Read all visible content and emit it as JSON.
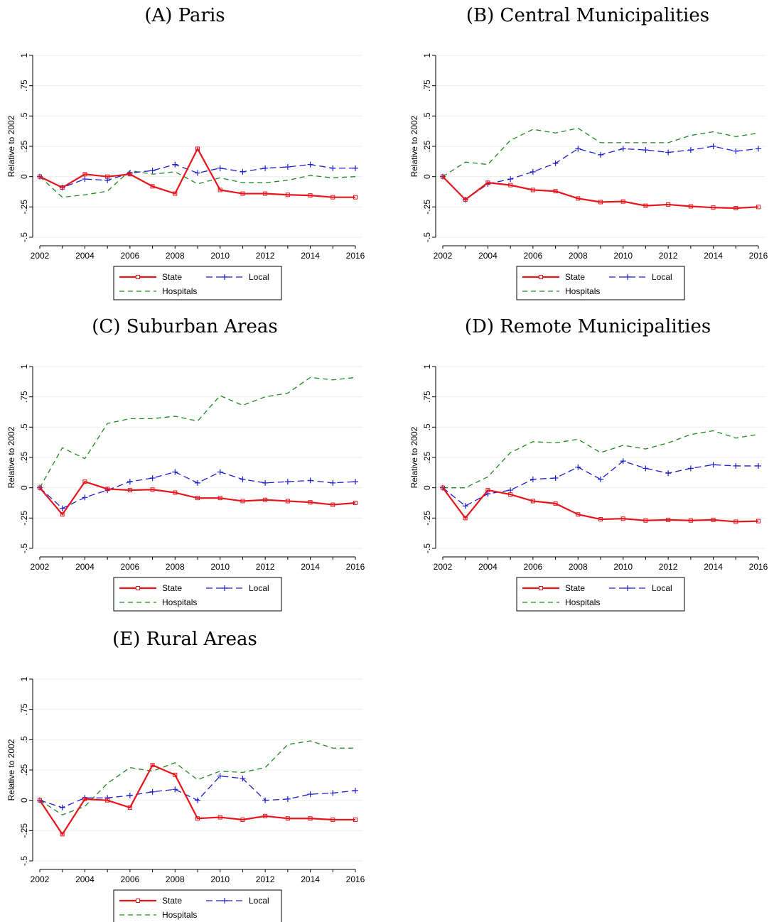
{
  "chart_data": [
    {
      "type": "line",
      "title": "(A) Paris",
      "ylabel": "Relative to 2002",
      "xlabel": "",
      "x": [
        2002,
        2003,
        2004,
        2005,
        2006,
        2007,
        2008,
        2009,
        2010,
        2011,
        2012,
        2013,
        2014,
        2015,
        2016
      ],
      "xticks": [
        "2002",
        "2004",
        "2006",
        "2008",
        "2010",
        "2012",
        "2014",
        "2016"
      ],
      "yticks": [
        "-.5",
        "-.25",
        "0",
        ".25",
        ".5",
        ".75",
        "1"
      ],
      "xlim": [
        2002,
        2016
      ],
      "ylim": [
        -0.5,
        1
      ],
      "grid": true,
      "legend_position": "bottom",
      "series": [
        {
          "name": "State",
          "color": "#e8141b",
          "style": "solid-square",
          "values": [
            0,
            -0.09,
            0.02,
            0.0,
            0.02,
            -0.08,
            -0.14,
            0.23,
            -0.11,
            -0.14,
            -0.14,
            -0.15,
            -0.155,
            -0.17,
            -0.17
          ]
        },
        {
          "name": "Local",
          "color": "#1e1ecf",
          "style": "dash-plus",
          "values": [
            0,
            -0.09,
            -0.02,
            -0.03,
            0.03,
            0.05,
            0.1,
            0.03,
            0.07,
            0.04,
            0.07,
            0.08,
            0.1,
            0.07,
            0.07
          ]
        },
        {
          "name": "Hospitals",
          "color": "#218a21",
          "style": "dash",
          "values": [
            0,
            -0.17,
            -0.15,
            -0.12,
            0.05,
            0.02,
            0.04,
            -0.06,
            -0.01,
            -0.05,
            -0.05,
            -0.03,
            0.01,
            -0.01,
            0.0
          ]
        }
      ]
    },
    {
      "type": "line",
      "title": "(B) Central Municipalities",
      "ylabel": "Relative to 2002",
      "xlabel": "",
      "x": [
        2002,
        2003,
        2004,
        2005,
        2006,
        2007,
        2008,
        2009,
        2010,
        2011,
        2012,
        2013,
        2014,
        2015,
        2016
      ],
      "xticks": [
        "2002",
        "2004",
        "2006",
        "2008",
        "2010",
        "2012",
        "2014",
        "2016"
      ],
      "yticks": [
        "-.5",
        "-.25",
        "0",
        ".25",
        ".5",
        ".75",
        "1"
      ],
      "xlim": [
        2002,
        2016
      ],
      "ylim": [
        -0.5,
        1
      ],
      "grid": true,
      "legend_position": "bottom",
      "series": [
        {
          "name": "State",
          "color": "#e8141b",
          "style": "solid-square",
          "values": [
            0,
            -0.19,
            -0.05,
            -0.07,
            -0.11,
            -0.12,
            -0.18,
            -0.21,
            -0.205,
            -0.24,
            -0.23,
            -0.245,
            -0.255,
            -0.26,
            -0.25
          ]
        },
        {
          "name": "Local",
          "color": "#1e1ecf",
          "style": "dash-plus",
          "values": [
            0,
            -0.19,
            -0.06,
            -0.02,
            0.04,
            0.11,
            0.23,
            0.18,
            0.23,
            0.22,
            0.2,
            0.22,
            0.25,
            0.21,
            0.23
          ]
        },
        {
          "name": "Hospitals",
          "color": "#218a21",
          "style": "dash",
          "values": [
            0,
            0.12,
            0.1,
            0.3,
            0.39,
            0.36,
            0.4,
            0.28,
            0.28,
            0.28,
            0.28,
            0.34,
            0.37,
            0.33,
            0.36
          ]
        }
      ]
    },
    {
      "type": "line",
      "title": "(C) Suburban Areas",
      "ylabel": "Relative to 2002",
      "xlabel": "",
      "x": [
        2002,
        2003,
        2004,
        2005,
        2006,
        2007,
        2008,
        2009,
        2010,
        2011,
        2012,
        2013,
        2014,
        2015,
        2016
      ],
      "xticks": [
        "2002",
        "2004",
        "2006",
        "2008",
        "2010",
        "2012",
        "2014",
        "2016"
      ],
      "yticks": [
        "-.5",
        "-.25",
        "0",
        ".25",
        ".5",
        ".75",
        "1"
      ],
      "xlim": [
        2002,
        2016
      ],
      "ylim": [
        -0.5,
        1
      ],
      "grid": true,
      "legend_position": "bottom",
      "series": [
        {
          "name": "State",
          "color": "#e8141b",
          "style": "solid-square",
          "values": [
            0,
            -0.22,
            0.05,
            -0.01,
            -0.02,
            -0.015,
            -0.04,
            -0.085,
            -0.085,
            -0.11,
            -0.1,
            -0.11,
            -0.12,
            -0.14,
            -0.125
          ]
        },
        {
          "name": "Local",
          "color": "#1e1ecf",
          "style": "dash-plus",
          "values": [
            0,
            -0.17,
            -0.08,
            -0.02,
            0.05,
            0.08,
            0.13,
            0.04,
            0.13,
            0.07,
            0.04,
            0.05,
            0.06,
            0.04,
            0.05
          ]
        },
        {
          "name": "Hospitals",
          "color": "#218a21",
          "style": "dash",
          "values": [
            0,
            0.33,
            0.24,
            0.53,
            0.57,
            0.57,
            0.59,
            0.55,
            0.76,
            0.68,
            0.75,
            0.78,
            0.91,
            0.89,
            0.91
          ]
        }
      ]
    },
    {
      "type": "line",
      "title": "(D) Remote Municipalities",
      "ylabel": "Relative to 2002",
      "xlabel": "",
      "x": [
        2002,
        2003,
        2004,
        2005,
        2006,
        2007,
        2008,
        2009,
        2010,
        2011,
        2012,
        2013,
        2014,
        2015,
        2016
      ],
      "xticks": [
        "2002",
        "2004",
        "2006",
        "2008",
        "2010",
        "2012",
        "2014",
        "2016"
      ],
      "yticks": [
        "-.5",
        "-.25",
        "0",
        ".25",
        ".5",
        ".75",
        "1"
      ],
      "xlim": [
        2002,
        2016
      ],
      "ylim": [
        -0.5,
        1
      ],
      "grid": true,
      "legend_position": "bottom",
      "series": [
        {
          "name": "State",
          "color": "#e8141b",
          "style": "solid-square",
          "values": [
            0,
            -0.25,
            -0.02,
            -0.055,
            -0.11,
            -0.13,
            -0.22,
            -0.26,
            -0.255,
            -0.27,
            -0.265,
            -0.27,
            -0.265,
            -0.28,
            -0.275
          ]
        },
        {
          "name": "Local",
          "color": "#1e1ecf",
          "style": "dash-plus",
          "values": [
            0,
            -0.15,
            -0.05,
            -0.02,
            0.07,
            0.08,
            0.17,
            0.07,
            0.22,
            0.16,
            0.12,
            0.16,
            0.19,
            0.18,
            0.18
          ]
        },
        {
          "name": "Hospitals",
          "color": "#218a21",
          "style": "dash",
          "values": [
            0,
            0.0,
            0.09,
            0.29,
            0.38,
            0.37,
            0.4,
            0.29,
            0.35,
            0.32,
            0.37,
            0.44,
            0.47,
            0.41,
            0.44
          ]
        }
      ]
    },
    {
      "type": "line",
      "title": "(E) Rural Areas",
      "ylabel": "Relative to 2002",
      "xlabel": "",
      "x": [
        2002,
        2003,
        2004,
        2005,
        2006,
        2007,
        2008,
        2009,
        2010,
        2011,
        2012,
        2013,
        2014,
        2015,
        2016
      ],
      "xticks": [
        "2002",
        "2004",
        "2006",
        "2008",
        "2010",
        "2012",
        "2014",
        "2016"
      ],
      "yticks": [
        "-.5",
        "-.25",
        "0",
        ".25",
        ".5",
        ".75",
        "1"
      ],
      "xlim": [
        2002,
        2016
      ],
      "ylim": [
        -0.5,
        1
      ],
      "grid": true,
      "legend_position": "bottom",
      "series": [
        {
          "name": "State",
          "color": "#e8141b",
          "style": "solid-square",
          "values": [
            0,
            -0.28,
            0.01,
            0.0,
            -0.06,
            0.29,
            0.21,
            -0.15,
            -0.14,
            -0.16,
            -0.13,
            -0.15,
            -0.15,
            -0.16,
            -0.16
          ]
        },
        {
          "name": "Local",
          "color": "#1e1ecf",
          "style": "dash-plus",
          "values": [
            0,
            -0.06,
            0.02,
            0.02,
            0.04,
            0.07,
            0.09,
            0.0,
            0.2,
            0.18,
            0.0,
            0.01,
            0.05,
            0.06,
            0.08
          ]
        },
        {
          "name": "Hospitals",
          "color": "#218a21",
          "style": "dash",
          "values": [
            0,
            -0.12,
            -0.05,
            0.14,
            0.27,
            0.24,
            0.31,
            0.17,
            0.24,
            0.23,
            0.27,
            0.46,
            0.49,
            0.43,
            0.43
          ]
        }
      ]
    }
  ]
}
